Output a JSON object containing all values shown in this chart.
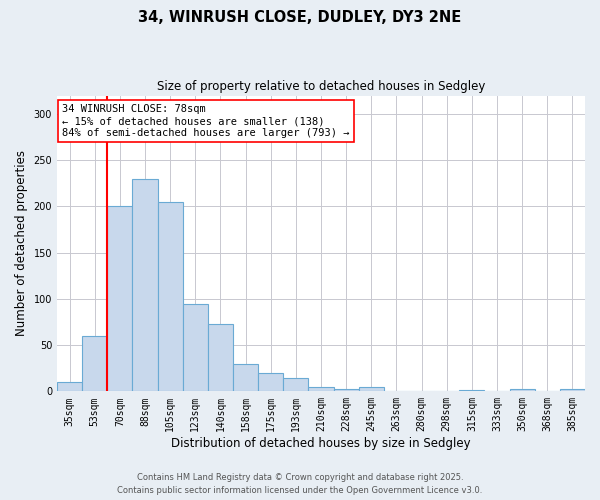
{
  "title1": "34, WINRUSH CLOSE, DUDLEY, DY3 2NE",
  "title2": "Size of property relative to detached houses in Sedgley",
  "categories": [
    "35sqm",
    "53sqm",
    "70sqm",
    "88sqm",
    "105sqm",
    "123sqm",
    "140sqm",
    "158sqm",
    "175sqm",
    "193sqm",
    "210sqm",
    "228sqm",
    "245sqm",
    "263sqm",
    "280sqm",
    "298sqm",
    "315sqm",
    "333sqm",
    "350sqm",
    "368sqm",
    "385sqm"
  ],
  "values": [
    10,
    60,
    200,
    230,
    205,
    95,
    73,
    30,
    20,
    14,
    5,
    3,
    5,
    0,
    0,
    0,
    1,
    0,
    2,
    0,
    2
  ],
  "bar_color": "#c8d8ec",
  "bar_edge_color": "#6aaad4",
  "red_line_index": 2,
  "annotation_title": "34 WINRUSH CLOSE: 78sqm",
  "annotation_line1": "← 15% of detached houses are smaller (138)",
  "annotation_line2": "84% of semi-detached houses are larger (793) →",
  "xlabel": "Distribution of detached houses by size in Sedgley",
  "ylabel": "Number of detached properties",
  "ylim": [
    0,
    320
  ],
  "yticks": [
    0,
    50,
    100,
    150,
    200,
    250,
    300
  ],
  "footer1": "Contains HM Land Registry data © Crown copyright and database right 2025.",
  "footer2": "Contains public sector information licensed under the Open Government Licence v3.0.",
  "bg_color": "#e8eef4",
  "plot_bg_color": "#ffffff",
  "grid_color": "#c8c8d0"
}
